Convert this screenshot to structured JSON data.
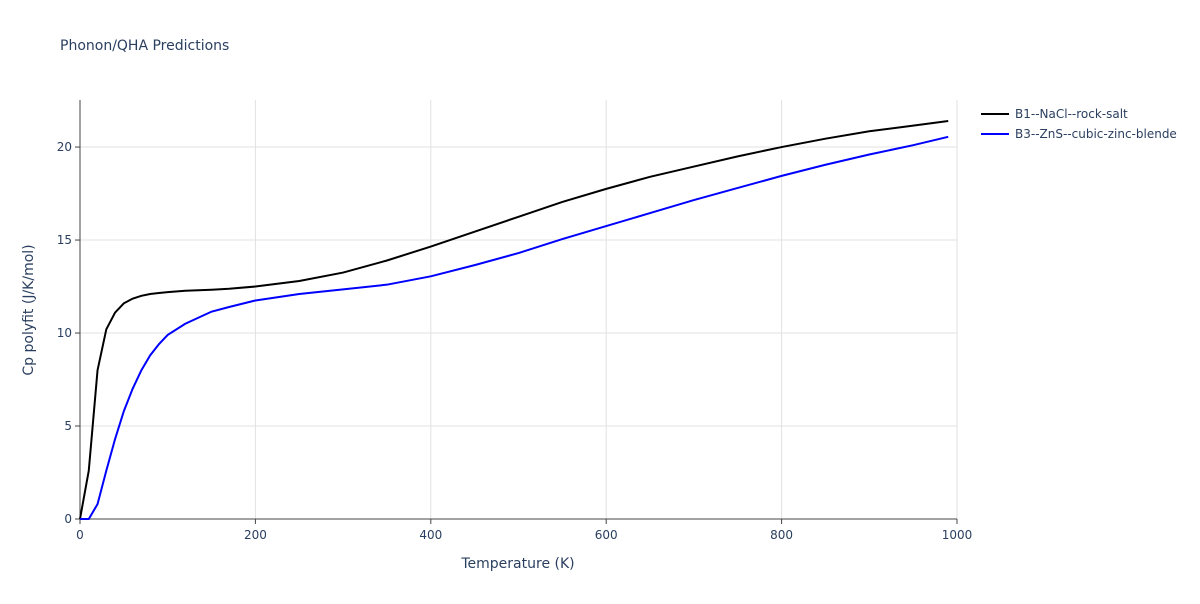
{
  "chart_data": {
    "type": "line",
    "title": "Phonon/QHA Predictions",
    "x_label": "Temperature (K)",
    "y_label": "Cp polyfit (J/K/mol)",
    "x": [
      0,
      10,
      20,
      30,
      40,
      50,
      60,
      70,
      80,
      90,
      100,
      120,
      150,
      170,
      200,
      250,
      300,
      350,
      400,
      450,
      500,
      550,
      600,
      650,
      700,
      750,
      800,
      850,
      900,
      950,
      990
    ],
    "series": [
      {
        "name": "B1--NaCl--rock-salt",
        "color": "#000000",
        "values": [
          0,
          2.6,
          8.0,
          10.2,
          11.1,
          11.6,
          11.85,
          12.0,
          12.1,
          12.15,
          12.2,
          12.27,
          12.33,
          12.38,
          12.5,
          12.8,
          13.25,
          13.9,
          14.65,
          15.45,
          16.25,
          17.05,
          17.75,
          18.4,
          18.95,
          19.5,
          20.0,
          20.45,
          20.85,
          21.15,
          21.4
        ]
      },
      {
        "name": "B3--ZnS--cubic-zinc-blende",
        "color": "#0000ff",
        "values": [
          0,
          0,
          0.8,
          2.6,
          4.3,
          5.8,
          7.0,
          8.0,
          8.8,
          9.4,
          9.9,
          10.5,
          11.15,
          11.4,
          11.75,
          12.1,
          12.35,
          12.6,
          13.05,
          13.65,
          14.3,
          15.05,
          15.75,
          16.45,
          17.15,
          17.8,
          18.45,
          19.05,
          19.6,
          20.1,
          20.55
        ]
      }
    ],
    "xlim": [
      0,
      1000
    ],
    "xticks": [
      0,
      200,
      400,
      600,
      800,
      1000
    ],
    "ylim": [
      0,
      22.53
    ],
    "yticks": [
      0,
      5,
      10,
      15,
      20
    ],
    "grid": true,
    "legend": "right"
  }
}
